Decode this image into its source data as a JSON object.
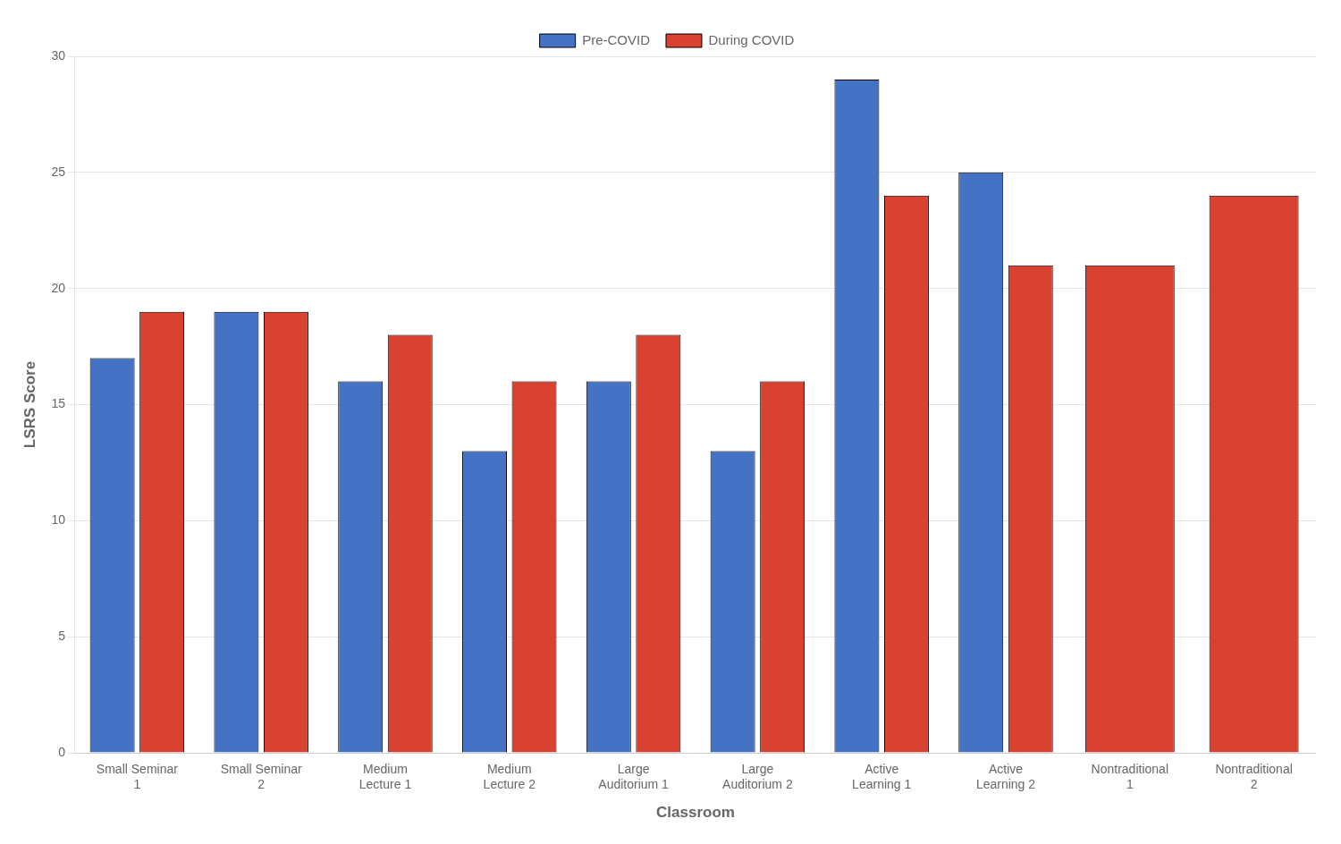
{
  "chart_data": {
    "type": "bar",
    "categories": [
      "Small Seminar\n1",
      "Small Seminar\n2",
      "Medium\nLecture 1",
      "Medium\nLecture 2",
      "Large\nAuditorium 1",
      "Large\nAuditorium 2",
      "Active\nLearning 1",
      "Active\nLearning 2",
      "Nontraditional\n1",
      "Nontraditional\n2"
    ],
    "series": [
      {
        "name": "Pre-COVID",
        "color": "#4472C4",
        "values": [
          17,
          19,
          16,
          13,
          16,
          13,
          29,
          25,
          null,
          null
        ]
      },
      {
        "name": "During COVID",
        "color": "#D94130",
        "values": [
          19,
          19,
          18,
          16,
          18,
          16,
          24,
          21,
          21,
          24
        ]
      }
    ],
    "xlabel": "Classroom",
    "ylabel": "LSRS Score",
    "ylim": [
      0,
      30
    ],
    "yticks": [
      0,
      5,
      10,
      15,
      20,
      25,
      30
    ],
    "grid": true,
    "legend": "top"
  }
}
